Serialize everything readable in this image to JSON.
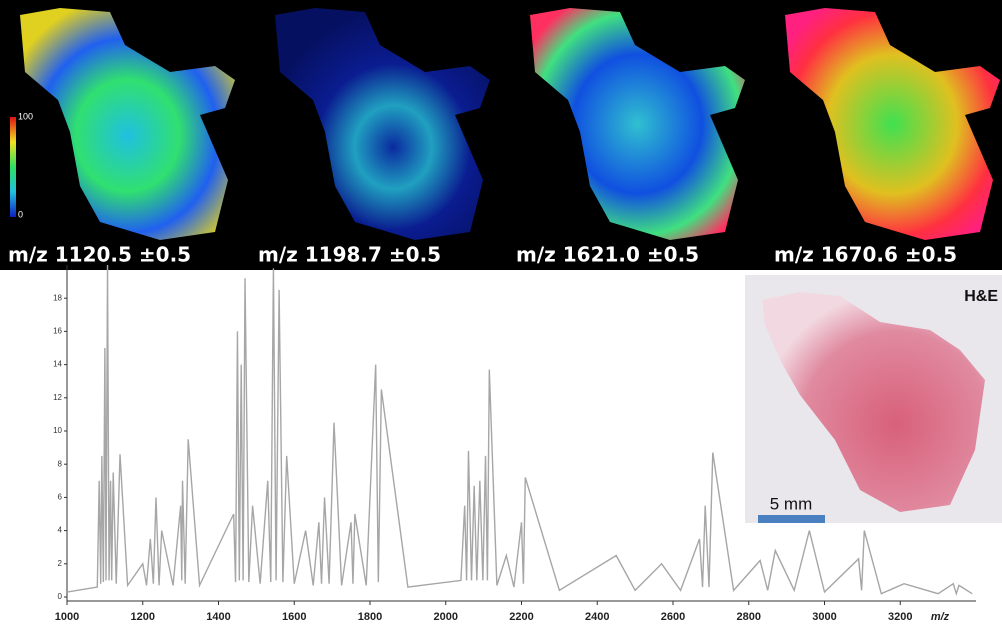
{
  "chart_data": {
    "type": "line",
    "x_label": "m/z",
    "color": "#a6a6a6",
    "x": [
      1000,
      1080,
      1085,
      1089,
      1092,
      1096,
      1100,
      1103,
      1107,
      1111,
      1115,
      1118,
      1122,
      1130,
      1140,
      1160,
      1200,
      1210,
      1220,
      1228,
      1235,
      1243,
      1250,
      1280,
      1300,
      1303,
      1305,
      1312,
      1320,
      1350,
      1440,
      1445,
      1450,
      1455,
      1460,
      1465,
      1470,
      1480,
      1490,
      1510,
      1530,
      1538,
      1545,
      1552,
      1560,
      1570,
      1580,
      1600,
      1630,
      1650,
      1665,
      1672,
      1680,
      1692,
      1705,
      1725,
      1750,
      1755,
      1760,
      1790,
      1815,
      1822,
      1830,
      1900,
      2040,
      2050,
      2055,
      2060,
      2068,
      2075,
      2082,
      2090,
      2098,
      2105,
      2110,
      2115,
      2135,
      2160,
      2180,
      2200,
      2205,
      2210,
      2300,
      2450,
      2500,
      2570,
      2620,
      2670,
      2678,
      2685,
      2695,
      2705,
      2760,
      2830,
      2850,
      2870,
      2920,
      2960,
      3000,
      3090,
      3098,
      3105,
      3150,
      3210,
      3300,
      3340,
      3348,
      3355,
      3390
    ],
    "values": [
      0.3,
      0.6,
      7,
      0.8,
      8.5,
      0.9,
      15,
      1,
      20,
      1,
      7,
      1,
      7.5,
      0.8,
      8.6,
      0.7,
      2,
      0.7,
      3.5,
      0.8,
      6,
      0.7,
      4,
      0.7,
      5.5,
      1,
      7,
      0.8,
      9.5,
      0.7,
      5,
      0.9,
      16,
      1,
      14,
      1,
      19.2,
      0.9,
      5.5,
      0.8,
      7,
      0.9,
      19.8,
      1,
      18.5,
      0.9,
      8.5,
      0.8,
      4,
      0.7,
      4.5,
      0.8,
      6,
      0.8,
      10.5,
      0.7,
      4.5,
      0.8,
      5,
      0.7,
      14,
      0.9,
      12.5,
      0.6,
      1,
      5.5,
      1,
      8.8,
      1,
      6.7,
      1,
      7,
      1,
      8.5,
      1,
      13.7,
      0.7,
      2.5,
      0.6,
      4.5,
      0.8,
      7.2,
      0.4,
      2.5,
      0.4,
      2,
      0.4,
      3.5,
      0.6,
      5.5,
      0.6,
      8.7,
      0.4,
      2.2,
      0.4,
      2.8,
      0.4,
      4,
      0.3,
      2.3,
      0.4,
      4,
      0.2,
      0.8,
      0.2,
      0.8,
      0.2,
      0.7,
      0.2
    ],
    "xlim": [
      1000,
      3400
    ],
    "xticks": [
      1000,
      1200,
      1400,
      1600,
      1800,
      2000,
      2200,
      2400,
      2600,
      2800,
      3000,
      3200
    ],
    "ylim": [
      0,
      20
    ],
    "yticks": [
      0,
      2,
      4,
      6,
      8,
      10,
      12,
      14,
      16,
      18
    ]
  },
  "images": [
    {
      "label": "m/z 1120.5 ±0.5"
    },
    {
      "label": "m/z 1198.7 ±0.5"
    },
    {
      "label": "m/z 1621.0 ±0.5"
    },
    {
      "label": "m/z 1670.6 ±0.5"
    }
  ],
  "colorbar": {
    "ticks": [
      0,
      100
    ]
  },
  "inset": {
    "label": "H&E",
    "scale_bar": "5 mm"
  }
}
